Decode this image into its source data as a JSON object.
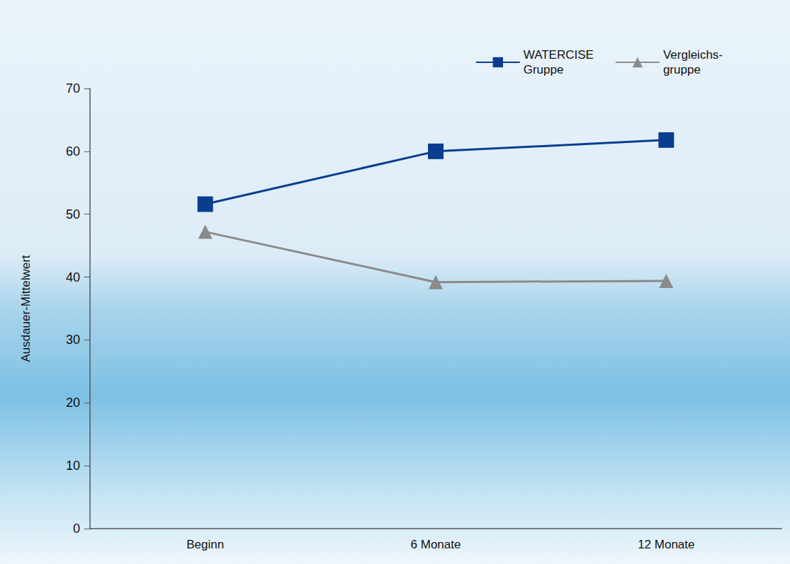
{
  "chart_data": {
    "type": "line",
    "categories": [
      "Beginn",
      "6 Monate",
      "12 Monate"
    ],
    "y_label": "Ausdauer-Mittelwert",
    "series": [
      {
        "name": "WATERCISE\nGruppe",
        "color": "#0a3d8f",
        "marker": "square",
        "values": [
          51.6,
          60.0,
          61.8
        ]
      },
      {
        "name": "Vergleichs-\ngruppe",
        "color": "#8a8a8a",
        "marker": "triangle",
        "values": [
          47.2,
          39.2,
          39.4
        ]
      }
    ],
    "ylim": [
      0,
      70
    ],
    "yticks": [
      0,
      10,
      20,
      30,
      40,
      50,
      60,
      70
    ],
    "grid": false,
    "legend": "top-right"
  }
}
